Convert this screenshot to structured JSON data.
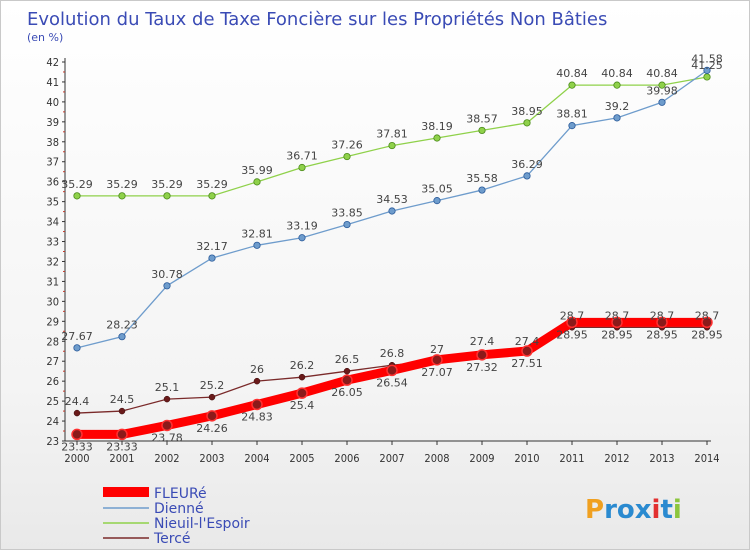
{
  "chart_data": {
    "type": "line",
    "title": "Evolution du Taux de Taxe Foncière sur les Propriétés Non Bâties",
    "subtitle": "(en %)",
    "xlabel": "",
    "ylabel": "",
    "x": [
      "2000",
      "2001",
      "2002",
      "2003",
      "2004",
      "2005",
      "2006",
      "2007",
      "2008",
      "2009",
      "2010",
      "2011",
      "2012",
      "2013",
      "2014"
    ],
    "ylim": [
      23,
      42
    ],
    "yticks": [
      "23",
      "24",
      "25",
      "26",
      "27",
      "28",
      "29",
      "30",
      "31",
      "32",
      "33",
      "34",
      "35",
      "36",
      "37",
      "38",
      "39",
      "40",
      "41",
      "42"
    ],
    "grid": false,
    "legend_position": "bottom-left",
    "series": [
      {
        "name": "FLEURé",
        "color": "#ff0000",
        "values": [
          23.33,
          23.33,
          23.78,
          24.26,
          24.83,
          25.4,
          26.05,
          26.54,
          27.07,
          27.32,
          27.51,
          28.95,
          28.95,
          28.95,
          28.95
        ],
        "labels": [
          "23.33",
          "23.33",
          "23.78",
          "24.26",
          "24.83",
          "25.4",
          "26.05",
          "26.54",
          "27.07",
          "27.32",
          "27.51",
          "28.95",
          "28.95",
          "28.95",
          "28.95"
        ]
      },
      {
        "name": "Dienné",
        "color": "#6e9ccc",
        "values": [
          27.67,
          28.23,
          30.78,
          32.17,
          32.81,
          33.19,
          33.85,
          34.53,
          35.05,
          35.58,
          36.29,
          38.81,
          39.2,
          39.98,
          41.58
        ],
        "labels": [
          "27.67",
          "28.23",
          "30.78",
          "32.17",
          "32.81",
          "33.19",
          "33.85",
          "34.53",
          "35.05",
          "35.58",
          "36.29",
          "38.81",
          "39.2",
          "39.98",
          "41.58"
        ]
      },
      {
        "name": "Nieuil-l'Espoir",
        "color": "#8fd14a",
        "values": [
          35.29,
          35.29,
          35.29,
          35.29,
          35.99,
          36.71,
          37.26,
          37.81,
          38.19,
          38.57,
          38.95,
          40.84,
          40.84,
          40.84,
          41.25
        ],
        "labels": [
          "35.29",
          "35.29",
          "35.29",
          "35.29",
          "35.99",
          "36.71",
          "37.26",
          "37.81",
          "38.19",
          "38.57",
          "38.95",
          "40.84",
          "40.84",
          "40.84",
          "41.25"
        ]
      },
      {
        "name": "Tercé",
        "color": "#7a2a2a",
        "values": [
          24.4,
          24.5,
          25.1,
          25.2,
          26.0,
          26.2,
          26.5,
          26.8,
          27.0,
          27.4,
          27.4,
          28.7,
          28.7,
          28.7,
          28.7
        ],
        "labels": [
          "24.4",
          "24.5",
          "25.1",
          "25.2",
          "26",
          "26.2",
          "26.5",
          "26.8",
          "27",
          "27.4",
          "27.4",
          "28.7",
          "28.7",
          "28.7",
          "28.7"
        ]
      }
    ]
  },
  "logo": {
    "text": "Proxiti"
  }
}
